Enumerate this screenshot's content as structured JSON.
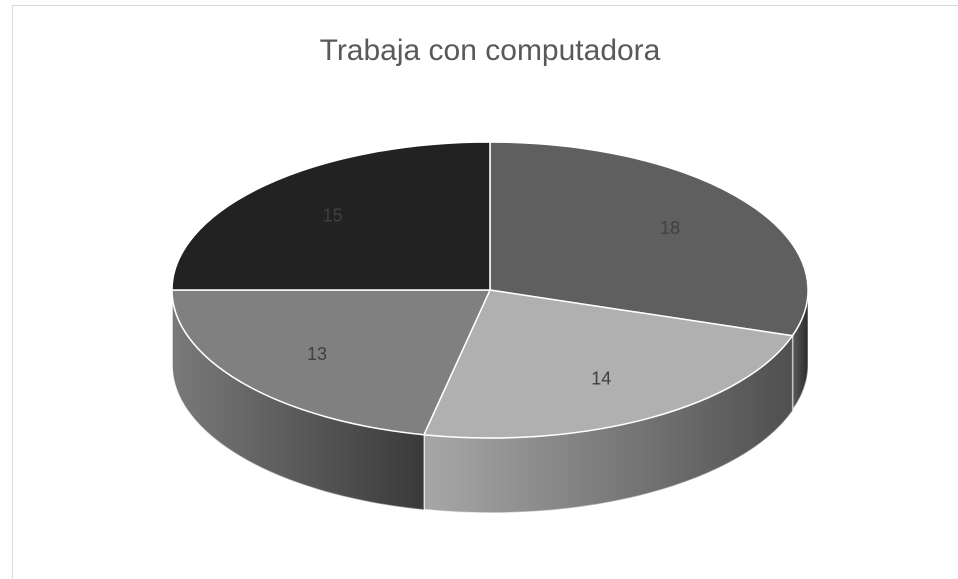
{
  "chart_data": {
    "type": "pie",
    "title": "Trabaja con computadora",
    "values": [
      18,
      14,
      13,
      15
    ],
    "colors": [
      "#5f5f5f",
      "#b0b0b0",
      "#808080",
      "#222222"
    ]
  }
}
